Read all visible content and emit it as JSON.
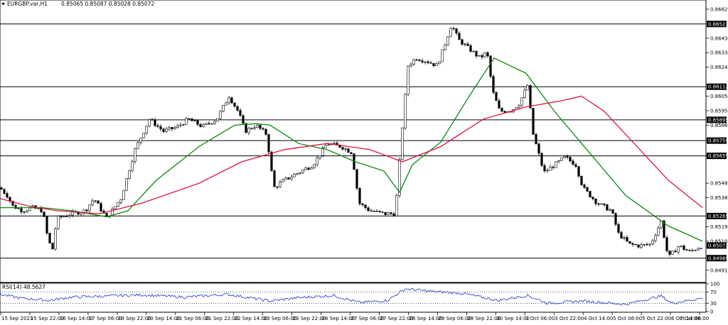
{
  "window": {
    "symbol": "EURGBP.var,H1",
    "ohlc": "0.85065 0.85087 0.85028 0.85072"
  },
  "price_axis": {
    "ticks": [
      {
        "label": "0.86620",
        "value": 0.8662
      },
      {
        "label": "0.86430",
        "value": 0.8643
      },
      {
        "label": "0.86335",
        "value": 0.86335
      },
      {
        "label": "0.86240",
        "value": 0.8624
      },
      {
        "label": "0.86050",
        "value": 0.8605
      },
      {
        "label": "0.85955",
        "value": 0.85955
      },
      {
        "label": "0.85860",
        "value": 0.8586
      },
      {
        "label": "0.85659",
        "value": 0.85659
      },
      {
        "label": "0.85480",
        "value": 0.8548
      },
      {
        "label": "0.85385",
        "value": 0.85385
      },
      {
        "label": "0.85195",
        "value": 0.85195
      },
      {
        "label": "0.85100",
        "value": 0.851
      },
      {
        "label": "0.84910",
        "value": 0.8491
      }
    ],
    "levels": [
      {
        "label": "0.86523",
        "value": 0.86523
      },
      {
        "label": "0.86112",
        "value": 0.86112
      },
      {
        "label": "0.85895",
        "value": 0.85895
      },
      {
        "label": "0.85759",
        "value": 0.85759
      },
      {
        "label": "0.85659",
        "value": 0.85659
      },
      {
        "label": "0.85265",
        "value": 0.85265
      },
      {
        "label": "0.84989",
        "value": 0.84989
      }
    ],
    "current_price": {
      "label": "0.85072",
      "value": 0.85072
    }
  },
  "rsi": {
    "label": "RSI(14) 48.5627",
    "ticks": [
      {
        "label": "100",
        "value": 100
      },
      {
        "label": "70",
        "value": 70
      },
      {
        "label": "30",
        "value": 30
      },
      {
        "label": "0",
        "value": 0
      }
    ],
    "levels": [
      70,
      30
    ]
  },
  "time_axis": {
    "labels": [
      "15 Sep 2021",
      "15 Sep 22:00",
      "16 Sep 14:00",
      "17 Sep 06:00",
      "19 Sep 22:00",
      "20 Sep 14:00",
      "21 Sep 06:00",
      "21 Sep 22:00",
      "22 Sep 14:00",
      "23 Sep 06:00",
      "23 Sep 22:00",
      "24 Sep 14:00",
      "27 Sep 06:00",
      "27 Sep 22:00",
      "28 Sep 14:00",
      "29 Sep 06:00",
      "29 Sep 22:00",
      "30 Sep 14:00",
      "1 Oct 06:00",
      "3 Oct 22:00",
      "4 Oct 14:00",
      "5 Oct 06:00",
      "5 Oct 22:00",
      "6 Oct 14:00",
      "7 Oct 06:00"
    ]
  },
  "colors": {
    "bull": "#000000",
    "bear": "#000000",
    "ma_fast": "#0a8a0a",
    "ma_slow": "#dc143c",
    "rsi_line": "#1e2fc8",
    "level": "#000000",
    "tag_bg": "#000000",
    "tag_text": "#ffffff"
  },
  "chart_data": {
    "type": "candlestick",
    "symbol": "EURGBP.var",
    "timeframe": "H1",
    "y_range": [
      0.8483,
      0.8668
    ],
    "rsi_range": [
      0,
      100
    ],
    "path_keypoints": [
      {
        "t": 0,
        "price": 0.8545
      },
      {
        "t": 10,
        "price": 0.854
      },
      {
        "t": 18,
        "price": 0.8533
      },
      {
        "t": 32,
        "price": 0.853
      },
      {
        "t": 45,
        "price": 0.8532
      },
      {
        "t": 60,
        "price": 0.853
      },
      {
        "t": 68,
        "price": 0.851
      },
      {
        "t": 74,
        "price": 0.8505
      },
      {
        "t": 80,
        "price": 0.8525
      },
      {
        "t": 100,
        "price": 0.8528
      },
      {
        "t": 120,
        "price": 0.853
      },
      {
        "t": 132,
        "price": 0.8538
      },
      {
        "t": 150,
        "price": 0.8525
      },
      {
        "t": 170,
        "price": 0.8538
      },
      {
        "t": 190,
        "price": 0.857
      },
      {
        "t": 210,
        "price": 0.859
      },
      {
        "t": 230,
        "price": 0.8582
      },
      {
        "t": 250,
        "price": 0.8585
      },
      {
        "t": 265,
        "price": 0.859
      },
      {
        "t": 285,
        "price": 0.8585
      },
      {
        "t": 305,
        "price": 0.859
      },
      {
        "t": 322,
        "price": 0.8605
      },
      {
        "t": 335,
        "price": 0.8595
      },
      {
        "t": 345,
        "price": 0.8582
      },
      {
        "t": 360,
        "price": 0.8586
      },
      {
        "t": 375,
        "price": 0.858
      },
      {
        "t": 385,
        "price": 0.8545
      },
      {
        "t": 400,
        "price": 0.855
      },
      {
        "t": 420,
        "price": 0.8555
      },
      {
        "t": 440,
        "price": 0.856
      },
      {
        "t": 460,
        "price": 0.8574
      },
      {
        "t": 480,
        "price": 0.8572
      },
      {
        "t": 495,
        "price": 0.8568
      },
      {
        "t": 505,
        "price": 0.8535
      },
      {
        "t": 520,
        "price": 0.853
      },
      {
        "t": 540,
        "price": 0.8528
      },
      {
        "t": 556,
        "price": 0.8528
      },
      {
        "t": 566,
        "price": 0.8585
      },
      {
        "t": 574,
        "price": 0.8625
      },
      {
        "t": 585,
        "price": 0.863
      },
      {
        "t": 600,
        "price": 0.8628
      },
      {
        "t": 615,
        "price": 0.8625
      },
      {
        "t": 625,
        "price": 0.8638
      },
      {
        "t": 635,
        "price": 0.8652
      },
      {
        "t": 645,
        "price": 0.8642
      },
      {
        "t": 660,
        "price": 0.8636
      },
      {
        "t": 675,
        "price": 0.863
      },
      {
        "t": 685,
        "price": 0.8634
      },
      {
        "t": 693,
        "price": 0.8608
      },
      {
        "t": 703,
        "price": 0.8595
      },
      {
        "t": 720,
        "price": 0.8596
      },
      {
        "t": 730,
        "price": 0.86
      },
      {
        "t": 742,
        "price": 0.8612
      },
      {
        "t": 750,
        "price": 0.858
      },
      {
        "t": 765,
        "price": 0.8555
      },
      {
        "t": 780,
        "price": 0.856
      },
      {
        "t": 795,
        "price": 0.8565
      },
      {
        "t": 810,
        "price": 0.856
      },
      {
        "t": 820,
        "price": 0.8545
      },
      {
        "t": 840,
        "price": 0.8535
      },
      {
        "t": 860,
        "price": 0.853
      },
      {
        "t": 870,
        "price": 0.8515
      },
      {
        "t": 885,
        "price": 0.8508
      },
      {
        "t": 900,
        "price": 0.8507
      },
      {
        "t": 915,
        "price": 0.8508
      },
      {
        "t": 930,
        "price": 0.8523
      },
      {
        "t": 940,
        "price": 0.8499
      },
      {
        "t": 955,
        "price": 0.8507
      },
      {
        "t": 970,
        "price": 0.8503
      },
      {
        "t": 988,
        "price": 0.85072
      }
    ],
    "series": [
      {
        "type": "ma_fast",
        "points": [
          {
            "t": 0,
            "price": 0.8532
          },
          {
            "t": 60,
            "price": 0.8532
          },
          {
            "t": 100,
            "price": 0.853
          },
          {
            "t": 150,
            "price": 0.8526
          },
          {
            "t": 180,
            "price": 0.853
          },
          {
            "t": 220,
            "price": 0.855
          },
          {
            "t": 280,
            "price": 0.8572
          },
          {
            "t": 330,
            "price": 0.8586
          },
          {
            "t": 360,
            "price": 0.8587
          },
          {
            "t": 380,
            "price": 0.8586
          },
          {
            "t": 420,
            "price": 0.8574
          },
          {
            "t": 460,
            "price": 0.857
          },
          {
            "t": 500,
            "price": 0.8562
          },
          {
            "t": 540,
            "price": 0.8556
          },
          {
            "t": 562,
            "price": 0.8542
          },
          {
            "t": 580,
            "price": 0.856
          },
          {
            "t": 620,
            "price": 0.8575
          },
          {
            "t": 660,
            "price": 0.8605
          },
          {
            "t": 695,
            "price": 0.863
          },
          {
            "t": 740,
            "price": 0.862
          },
          {
            "t": 780,
            "price": 0.8595
          },
          {
            "t": 820,
            "price": 0.8573
          },
          {
            "t": 880,
            "price": 0.854
          },
          {
            "t": 940,
            "price": 0.852
          },
          {
            "t": 988,
            "price": 0.851
          }
        ]
      },
      {
        "type": "ma_slow",
        "points": [
          {
            "t": 0,
            "price": 0.8538
          },
          {
            "t": 40,
            "price": 0.8533
          },
          {
            "t": 80,
            "price": 0.853
          },
          {
            "t": 140,
            "price": 0.8528
          },
          {
            "t": 200,
            "price": 0.8535
          },
          {
            "t": 280,
            "price": 0.8548
          },
          {
            "t": 340,
            "price": 0.8562
          },
          {
            "t": 400,
            "price": 0.857
          },
          {
            "t": 460,
            "price": 0.8574
          },
          {
            "t": 520,
            "price": 0.857
          },
          {
            "t": 566,
            "price": 0.8562
          },
          {
            "t": 620,
            "price": 0.8572
          },
          {
            "t": 680,
            "price": 0.859
          },
          {
            "t": 740,
            "price": 0.8598
          },
          {
            "t": 790,
            "price": 0.8602
          },
          {
            "t": 818,
            "price": 0.8605
          },
          {
            "t": 850,
            "price": 0.8595
          },
          {
            "t": 900,
            "price": 0.857
          },
          {
            "t": 940,
            "price": 0.855
          },
          {
            "t": 988,
            "price": 0.8532
          }
        ]
      }
    ],
    "rsi_keypoints": [
      {
        "t": 0,
        "rsi": 62
      },
      {
        "t": 30,
        "rsi": 48
      },
      {
        "t": 70,
        "rsi": 40
      },
      {
        "t": 100,
        "rsi": 52
      },
      {
        "t": 140,
        "rsi": 55
      },
      {
        "t": 200,
        "rsi": 60
      },
      {
        "t": 260,
        "rsi": 52
      },
      {
        "t": 320,
        "rsi": 62
      },
      {
        "t": 380,
        "rsi": 38
      },
      {
        "t": 420,
        "rsi": 50
      },
      {
        "t": 470,
        "rsi": 58
      },
      {
        "t": 505,
        "rsi": 32
      },
      {
        "t": 545,
        "rsi": 40
      },
      {
        "t": 570,
        "rsi": 82
      },
      {
        "t": 610,
        "rsi": 72
      },
      {
        "t": 650,
        "rsi": 66
      },
      {
        "t": 700,
        "rsi": 40
      },
      {
        "t": 742,
        "rsi": 58
      },
      {
        "t": 770,
        "rsi": 30
      },
      {
        "t": 820,
        "rsi": 38
      },
      {
        "t": 880,
        "rsi": 26
      },
      {
        "t": 930,
        "rsi": 56
      },
      {
        "t": 945,
        "rsi": 30
      },
      {
        "t": 988,
        "rsi": 48.5627
      }
    ]
  }
}
